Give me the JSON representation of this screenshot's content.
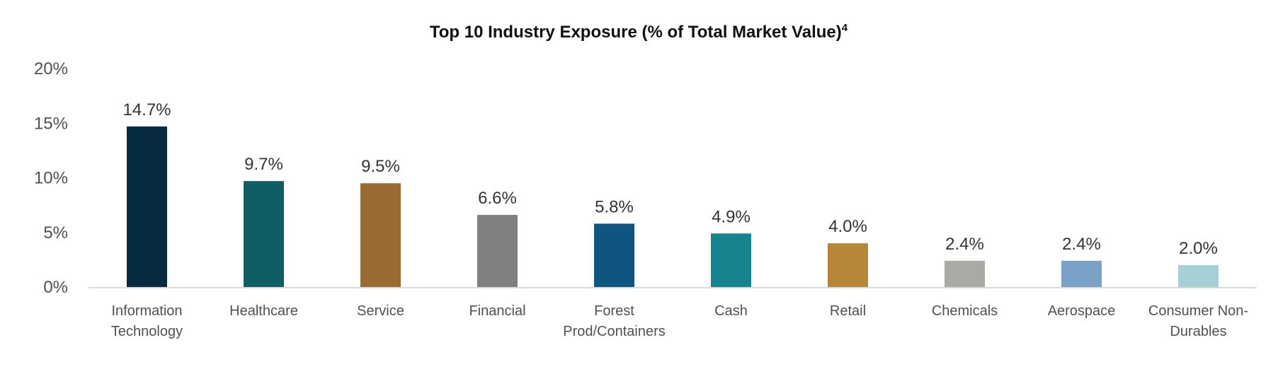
{
  "chart_data": {
    "type": "bar",
    "title": "Top 10 Industry Exposure (% of Total Market Value)",
    "title_superscript": "4",
    "xlabel": "",
    "ylabel": "",
    "ylim": [
      0,
      20
    ],
    "yticks": [
      "0%",
      "5%",
      "10%",
      "15%",
      "20%"
    ],
    "ytick_values": [
      0,
      5,
      10,
      15,
      20
    ],
    "grid": false,
    "legend": "none",
    "categories": [
      [
        "Information",
        "Technology"
      ],
      [
        "Healthcare"
      ],
      [
        "Service"
      ],
      [
        "Financial"
      ],
      [
        "Forest",
        "Prod/Containers"
      ],
      [
        "Cash"
      ],
      [
        "Retail"
      ],
      [
        "Chemicals"
      ],
      [
        "Aerospace"
      ],
      [
        "Consumer Non-",
        "Durables"
      ]
    ],
    "values": [
      14.7,
      9.7,
      9.5,
      6.6,
      5.8,
      4.9,
      4.0,
      2.4,
      2.4,
      2.0
    ],
    "data_labels": [
      "14.7%",
      "9.7%",
      "9.5%",
      "6.6%",
      "5.8%",
      "4.9%",
      "4.0%",
      "2.4%",
      "2.4%",
      "2.0%"
    ],
    "colors": [
      "#062a40",
      "#0f5e66",
      "#9a6c33",
      "#808080",
      "#0e5680",
      "#16838f",
      "#b48838",
      "#a9aaa5",
      "#7aa2c6",
      "#a4d0d6"
    ],
    "axis_color": "#d9d9d9"
  }
}
